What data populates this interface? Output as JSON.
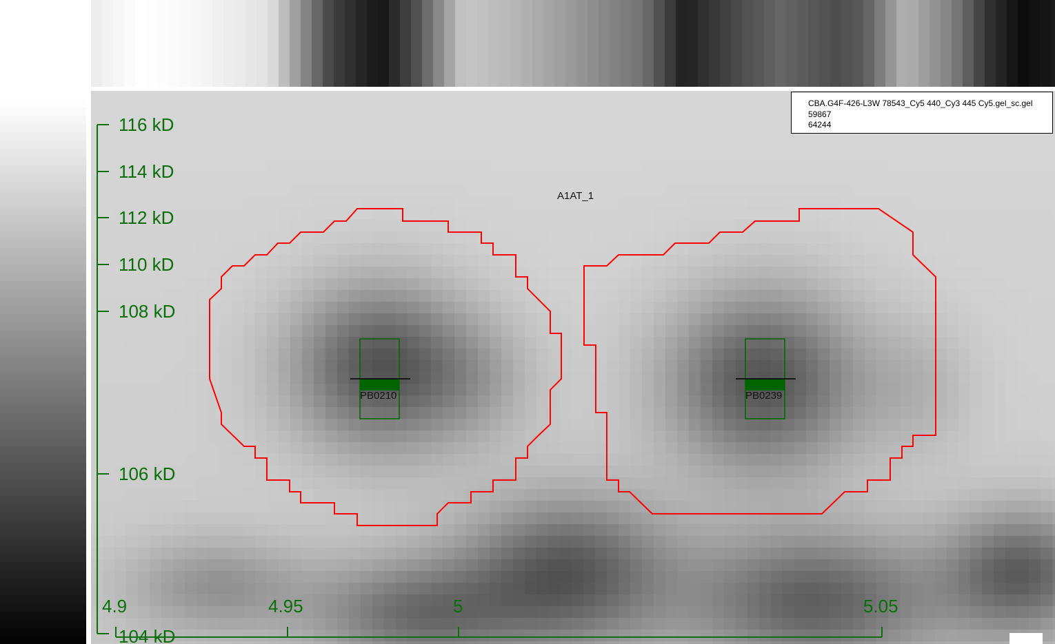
{
  "gel_info": {
    "filename": "CBA.G4F-426-L3W 78543_Cy5 440_Cy3 445 Cy5.gel_sc.gel",
    "value1": "59867",
    "value2": "64244"
  },
  "group_label": "A1AT_1",
  "y_axis": {
    "ticks": [
      {
        "label": "116 kD"
      },
      {
        "label": "114 kD"
      },
      {
        "label": "112 kD"
      },
      {
        "label": "110 kD"
      },
      {
        "label": "108 kD"
      },
      {
        "label": "106 kD"
      },
      {
        "label": "104 kD"
      }
    ]
  },
  "x_axis": {
    "ticks": [
      {
        "label": "4.9"
      },
      {
        "label": "4.95"
      },
      {
        "label": "5"
      },
      {
        "label": "5.05"
      }
    ]
  },
  "spots": [
    {
      "id": "PB0210"
    },
    {
      "id": "PB0239"
    }
  ],
  "colors": {
    "axis": "#0a6e0a",
    "boundary": "#ff0000",
    "marker": "#006400"
  }
}
